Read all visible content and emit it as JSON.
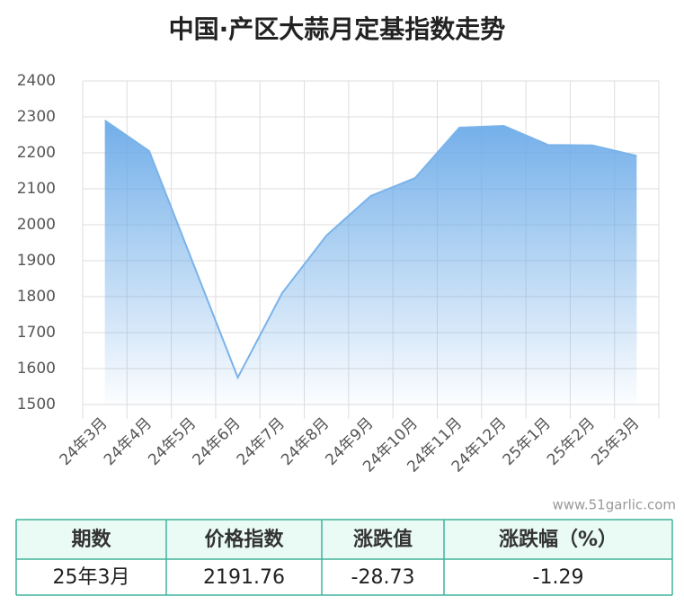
{
  "chart_data": {
    "type": "area",
    "title": "中国·产区大蒜月定基指数走势",
    "categories": [
      "24年3月",
      "24年4月",
      "24年5月",
      "24年6月",
      "24年7月",
      "24年8月",
      "24年9月",
      "24年10月",
      "24年11月",
      "24年12月",
      "25年1月",
      "25年2月",
      "25年3月"
    ],
    "values": [
      2290,
      2205,
      1890,
      1575,
      1810,
      1970,
      2080,
      2130,
      2270,
      2275,
      2222,
      2220.49,
      2191.76
    ],
    "color": "#7ab3ea",
    "ylim": [
      1500,
      2400
    ],
    "yticks": [
      1500,
      1600,
      1700,
      1800,
      1900,
      2000,
      2100,
      2200,
      2300,
      2400
    ],
    "grid": true
  },
  "watermark": "www.51garlic.com",
  "table": {
    "headers": [
      "期数",
      "价格指数",
      "涨跌值",
      "涨跌幅（%）"
    ],
    "rows": [
      [
        "25年3月",
        "2191.76",
        "-28.73",
        "-1.29"
      ]
    ]
  }
}
